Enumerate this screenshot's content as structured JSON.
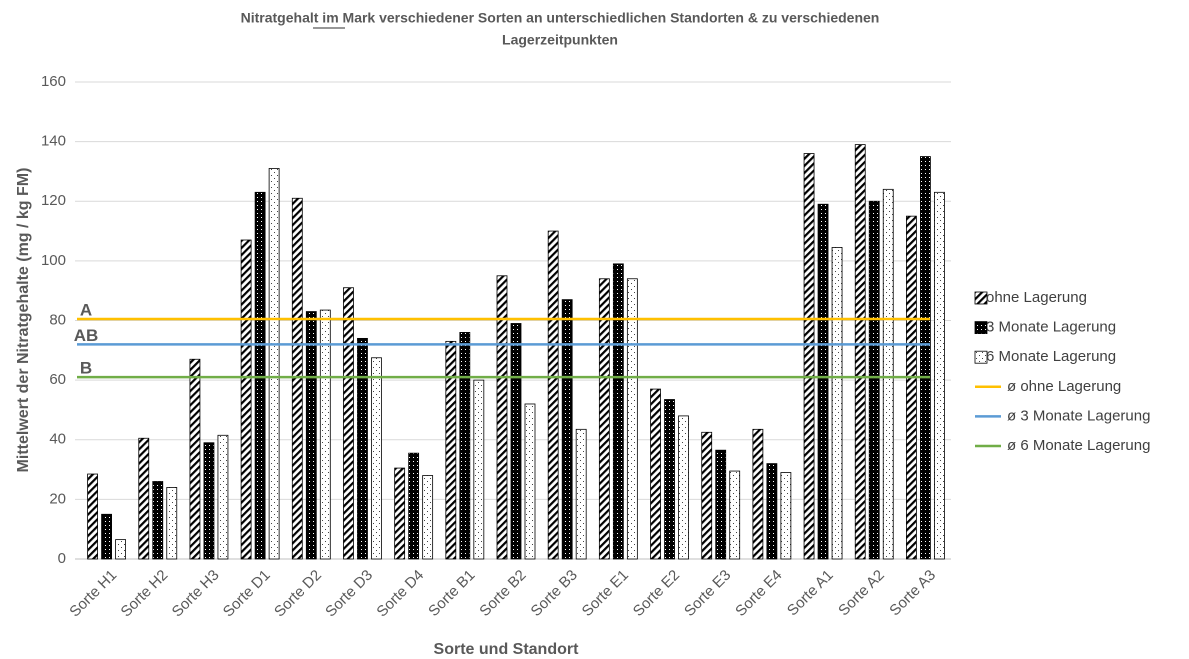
{
  "chart_data": {
    "type": "bar",
    "title_lines": [
      "Nitratgehalt im Mark verschiedener Sorten an unterschiedlichen Standorten & zu verschiedenen",
      "Lagerzeitpunkten"
    ],
    "y_label": "Mittelwert der Nitratgehalte (mg / kg FM)",
    "x_label": "Sorte und Standort",
    "categories": [
      "Sorte H1",
      "Sorte H2",
      "Sorte H3",
      "Sorte D1",
      "Sorte D2",
      "Sorte D3",
      "Sorte D4",
      "Sorte B1",
      "Sorte B2",
      "Sorte B3",
      "Sorte E1",
      "Sorte E2",
      "Sorte E3",
      "Sorte E4",
      "Sorte A1",
      "Sorte A2",
      "Sorte A3"
    ],
    "series": [
      {
        "name": "ohne Lagerung",
        "color": "#000000",
        "pattern": "diagonal",
        "values": [
          28.5,
          40.5,
          67,
          107,
          121,
          91,
          30.5,
          73,
          95,
          110,
          94,
          57,
          42.5,
          43.5,
          136,
          139,
          115
        ]
      },
      {
        "name": "3 Monate Lagerung",
        "color": "#000000",
        "pattern": "dense-dots",
        "values": [
          15,
          26,
          39,
          123,
          83,
          74,
          35.5,
          76,
          79,
          87,
          99,
          53.5,
          36.5,
          32,
          119,
          120,
          135
        ]
      },
      {
        "name": "6 Monate Lagerung",
        "color": "#000000",
        "pattern": "sparse-dots",
        "values": [
          6.5,
          24,
          41.5,
          131,
          83.5,
          67.5,
          28,
          60,
          52,
          43.5,
          94,
          48,
          29.5,
          29,
          104.5,
          124,
          123
        ]
      }
    ],
    "reference_lines": [
      {
        "name": "ø ohne Lagerung",
        "color": "#ffc000",
        "value": 80.5,
        "label": "A"
      },
      {
        "name": "ø 3 Monate Lagerung",
        "color": "#5b9bd5",
        "value": 72,
        "label": "AB"
      },
      {
        "name": "ø 6 Monate Lagerung",
        "color": "#70ad47",
        "value": 61,
        "label": "B"
      }
    ],
    "ylim": [
      0,
      160
    ],
    "yticks": [
      0,
      20,
      40,
      60,
      80,
      100,
      120,
      140,
      160
    ],
    "grid": true
  }
}
